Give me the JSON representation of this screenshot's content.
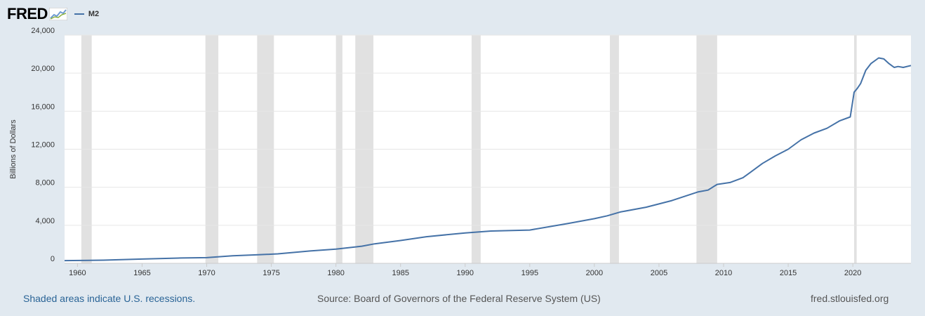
{
  "header": {
    "logo": "FRED",
    "legend_label": "M2"
  },
  "footer": {
    "recession_note": "Shaded areas indicate U.S. recessions.",
    "source": "Source: Board of Governors of the Federal Reserve System (US)",
    "site": "fred.stlouisfed.org"
  },
  "colors": {
    "line": "#4572a7",
    "recession": "#e1e1e1",
    "background": "#e1e9f0",
    "plot": "#ffffff"
  },
  "chart_data": {
    "type": "line",
    "ylabel": "Billions of Dollars",
    "xlim": [
      1959.0,
      2024.5
    ],
    "ylim": [
      0,
      24000
    ],
    "yticks": [
      0,
      4000,
      8000,
      12000,
      16000,
      20000,
      24000
    ],
    "ytick_labels": [
      "0",
      "4,000",
      "8,000",
      "12,000",
      "16,000",
      "20,000",
      "24,000"
    ],
    "xticks": [
      1960,
      1965,
      1970,
      1975,
      1980,
      1985,
      1990,
      1995,
      2000,
      2005,
      2010,
      2015,
      2020
    ],
    "recessions": [
      [
        1960.3,
        1961.1
      ],
      [
        1969.9,
        1970.9
      ],
      [
        1973.9,
        1975.2
      ],
      [
        1980.0,
        1980.5
      ],
      [
        1981.5,
        1982.9
      ],
      [
        1990.5,
        1991.2
      ],
      [
        2001.2,
        2001.9
      ],
      [
        2007.9,
        2009.5
      ],
      [
        2020.1,
        2020.3
      ]
    ],
    "grid": true,
    "series": [
      {
        "name": "M2",
        "x": [
          1959.0,
          1962,
          1965,
          1968,
          1970.0,
          1972,
          1974,
          1975.5,
          1978,
          1980,
          1982,
          1983.0,
          1985,
          1987,
          1990,
          1992,
          1995,
          1998,
          2000,
          2001,
          2002,
          2004,
          2006,
          2008,
          2008.8,
          2009.5,
          2010.5,
          2011.5,
          2012,
          2013,
          2014,
          2015,
          2016,
          2017,
          2018,
          2019,
          2019.8,
          2020.1,
          2020.35,
          2020.6,
          2021,
          2021.4,
          2022.0,
          2022.4,
          2022.8,
          2023.2,
          2023.5,
          2023.9,
          2024.5
        ],
        "values": [
          290,
          330,
          450,
          560,
          600,
          800,
          900,
          1000,
          1300,
          1500,
          1800,
          2050,
          2400,
          2800,
          3200,
          3400,
          3500,
          4200,
          4700,
          5000,
          5400,
          5900,
          6600,
          7500,
          7700,
          8300,
          8500,
          9000,
          9500,
          10500,
          11300,
          12000,
          13000,
          13700,
          14200,
          15000,
          15400,
          18000,
          18400,
          18900,
          20300,
          21000,
          21600,
          21500,
          21000,
          20600,
          20700,
          20600,
          20800
        ]
      }
    ]
  }
}
